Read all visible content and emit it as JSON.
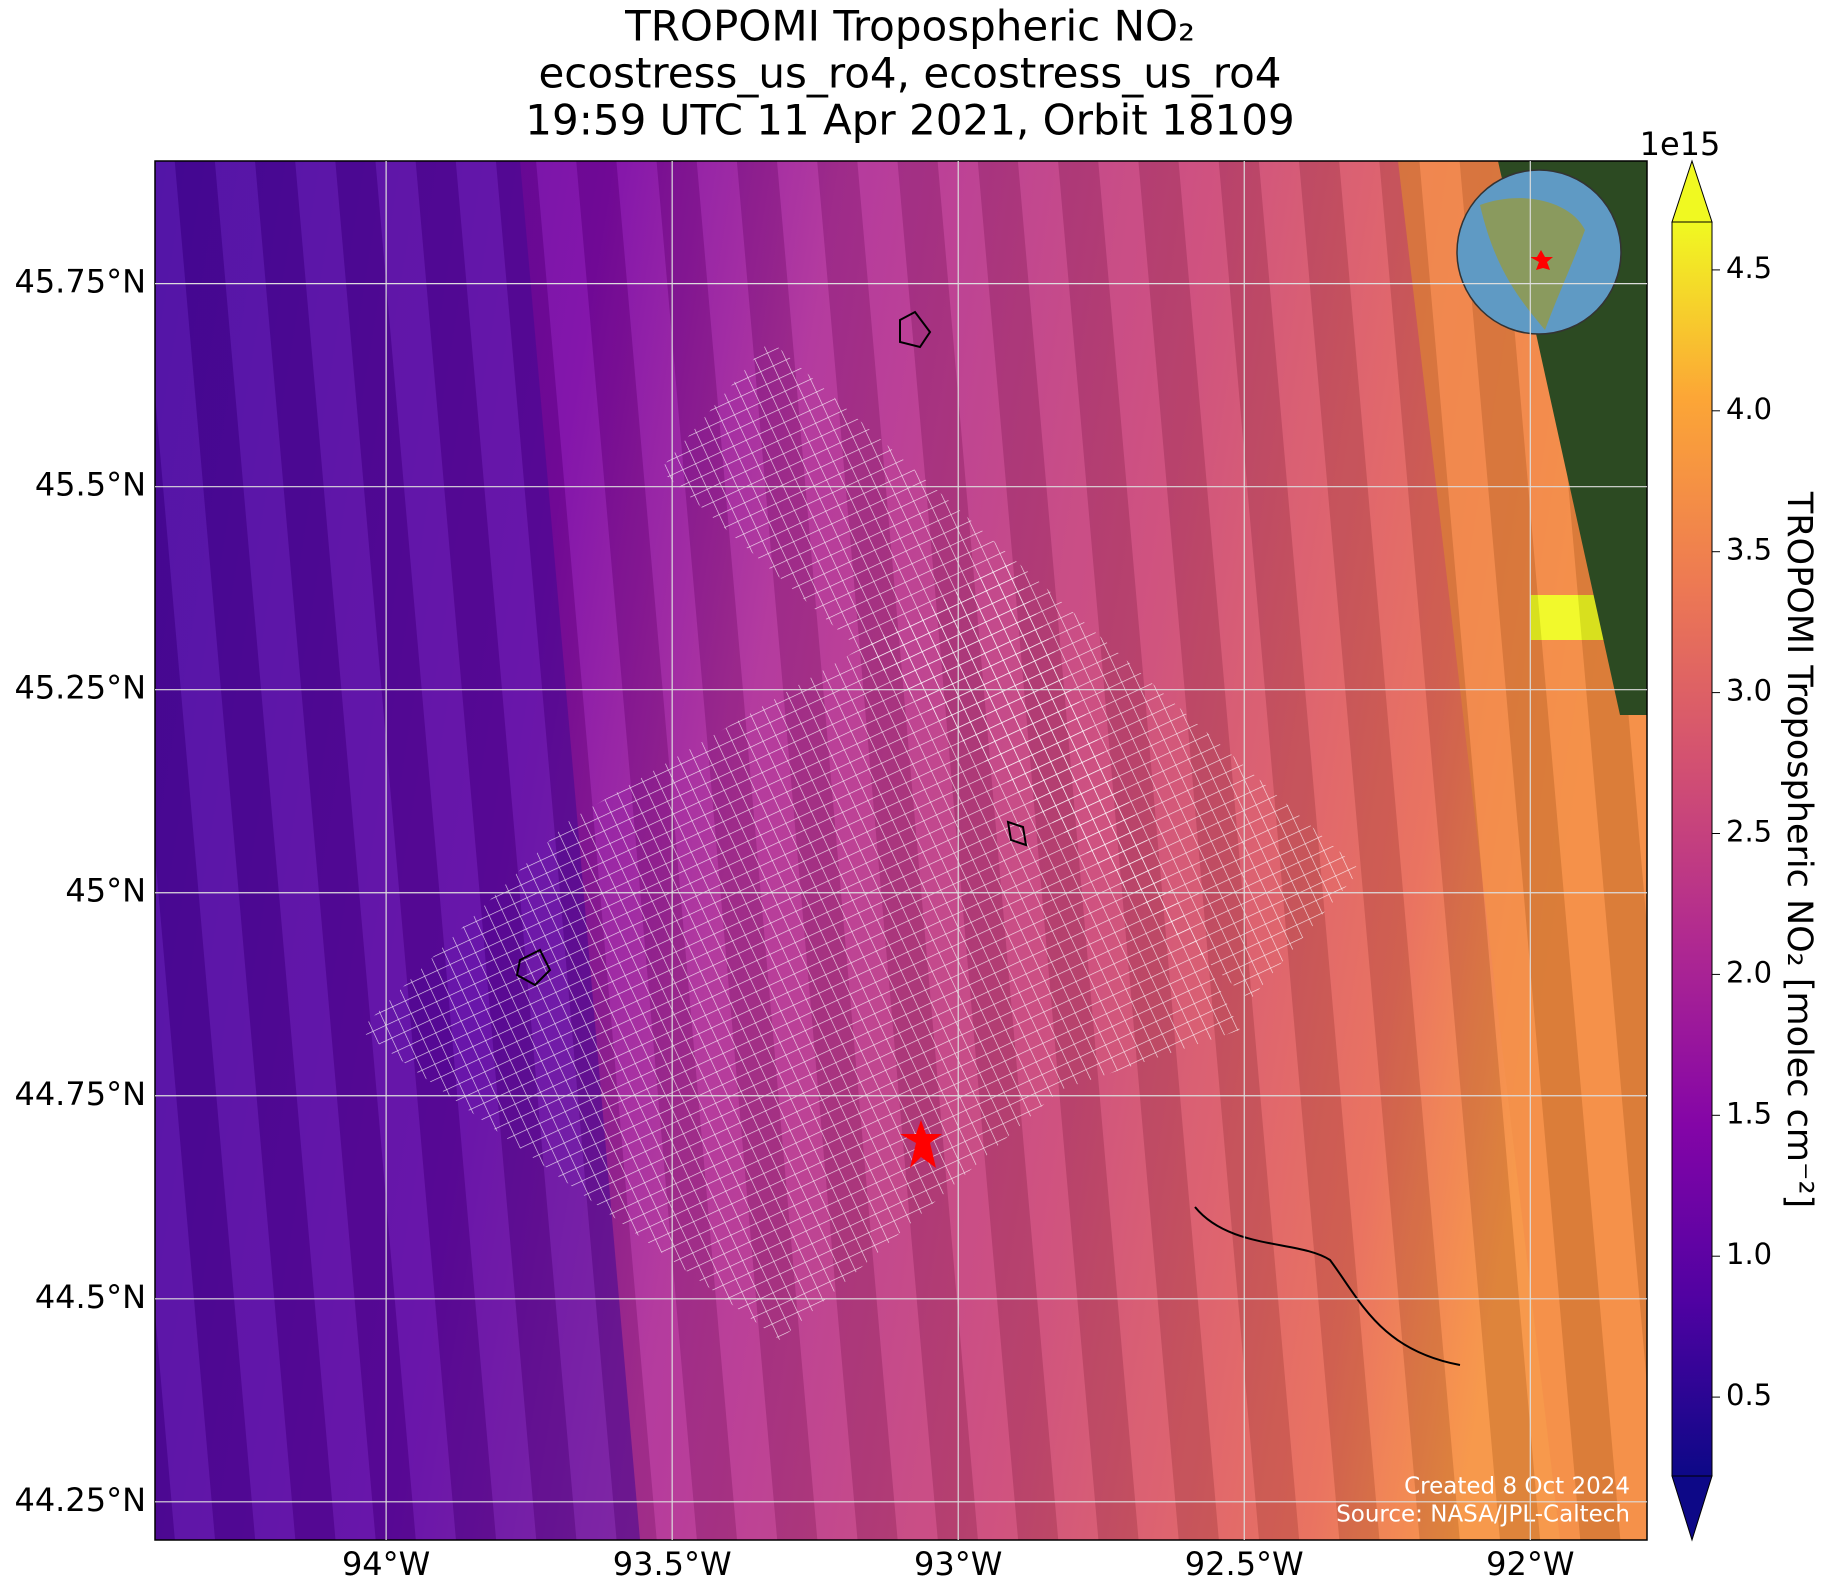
{
  "chart_data": {
    "type": "map",
    "title": [
      "TROPOMI Tropospheric NO₂",
      "ecostress_us_ro4, ecostress_us_ro4",
      "19:59 UTC 11 Apr 2021, Orbit 18109"
    ],
    "xlim": [
      -94.404,
      -91.796
    ],
    "ylim": [
      44.203,
      45.901
    ],
    "xticks": [
      {
        "value": -94,
        "label": "94°W"
      },
      {
        "value": -93.5,
        "label": "93.5°W"
      },
      {
        "value": -93,
        "label": "93°W"
      },
      {
        "value": -92.5,
        "label": "92.5°W"
      },
      {
        "value": -92,
        "label": "92°W"
      }
    ],
    "yticks": [
      {
        "value": 44.25,
        "label": "44.25°N"
      },
      {
        "value": 44.5,
        "label": "44.5°N"
      },
      {
        "value": 44.75,
        "label": "44.75°N"
      },
      {
        "value": 45,
        "label": "45°N"
      },
      {
        "value": 45.25,
        "label": "45.25°N"
      },
      {
        "value": 45.5,
        "label": "45.5°N"
      },
      {
        "value": 45.75,
        "label": "45.75°N"
      }
    ],
    "grid": true,
    "colorbar": {
      "label": "TROPOMI Tropospheric NO₂ [molec cm⁻²]",
      "offset_label": "1e15",
      "clim": [
        0.22,
        4.67
      ],
      "ticks": [
        0.5,
        {
          "value": 1,
          "label": "1.0"
        },
        1.5,
        {
          "value": 2,
          "label": "2.0"
        },
        2.5,
        {
          "value": 3,
          "label": "3.0"
        },
        3.5,
        {
          "value": 4,
          "label": "4.0"
        },
        4.5
      ]
    },
    "credits": [
      "Created 8 Oct 2024",
      "Source: NASA/JPL-Caltech"
    ]
  }
}
